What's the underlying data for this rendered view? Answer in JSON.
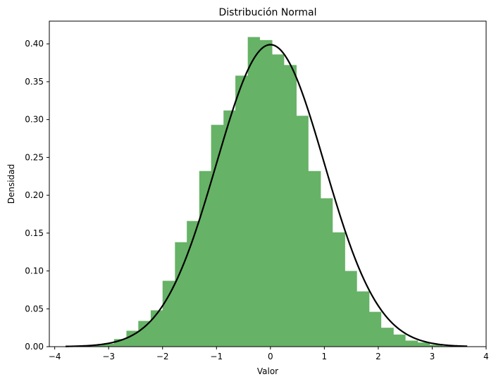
{
  "chart_data": {
    "type": "bar",
    "title": "Distribución Normal",
    "xlabel": "Valor",
    "ylabel": "Densidad",
    "xlim": [
      -4.1,
      4.0
    ],
    "ylim": [
      0,
      0.43
    ],
    "xticks": [
      -4,
      -3,
      -2,
      -1,
      0,
      1,
      2,
      3,
      4
    ],
    "xtick_labels": [
      "−4",
      "−3",
      "−2",
      "−1",
      "0",
      "1",
      "2",
      "3",
      "4"
    ],
    "yticks": [
      0,
      0.05,
      0.1,
      0.15,
      0.2,
      0.25,
      0.3,
      0.35,
      0.4
    ],
    "ytick_labels": [
      "0.00",
      "0.05",
      "0.10",
      "0.15",
      "0.20",
      "0.25",
      "0.30",
      "0.35",
      "0.40"
    ],
    "grid": false,
    "histogram": {
      "bin_edges": [
        -3.8,
        -3.57,
        -3.35,
        -3.12,
        -2.9,
        -2.67,
        -2.45,
        -2.22,
        -2.0,
        -1.77,
        -1.55,
        -1.32,
        -1.1,
        -0.87,
        -0.65,
        -0.42,
        -0.2,
        0.03,
        0.25,
        0.48,
        0.7,
        0.93,
        1.15,
        1.38,
        1.6,
        1.83,
        2.05,
        2.28,
        2.5,
        2.73,
        2.95,
        3.18,
        3.4,
        3.63
      ],
      "densities": [
        0.0002,
        0.0009,
        0.0022,
        0.004,
        0.01,
        0.021,
        0.034,
        0.048,
        0.087,
        0.138,
        0.166,
        0.232,
        0.293,
        0.312,
        0.358,
        0.409,
        0.405,
        0.386,
        0.372,
        0.305,
        0.232,
        0.196,
        0.151,
        0.1,
        0.073,
        0.046,
        0.025,
        0.016,
        0.008,
        0.0055,
        0.0025,
        0.001,
        0.0004
      ],
      "color": "#66b266"
    },
    "pdf_curve": {
      "mean": 0,
      "std": 1,
      "x_range": [
        -3.8,
        3.65
      ],
      "color": "#000000"
    }
  }
}
